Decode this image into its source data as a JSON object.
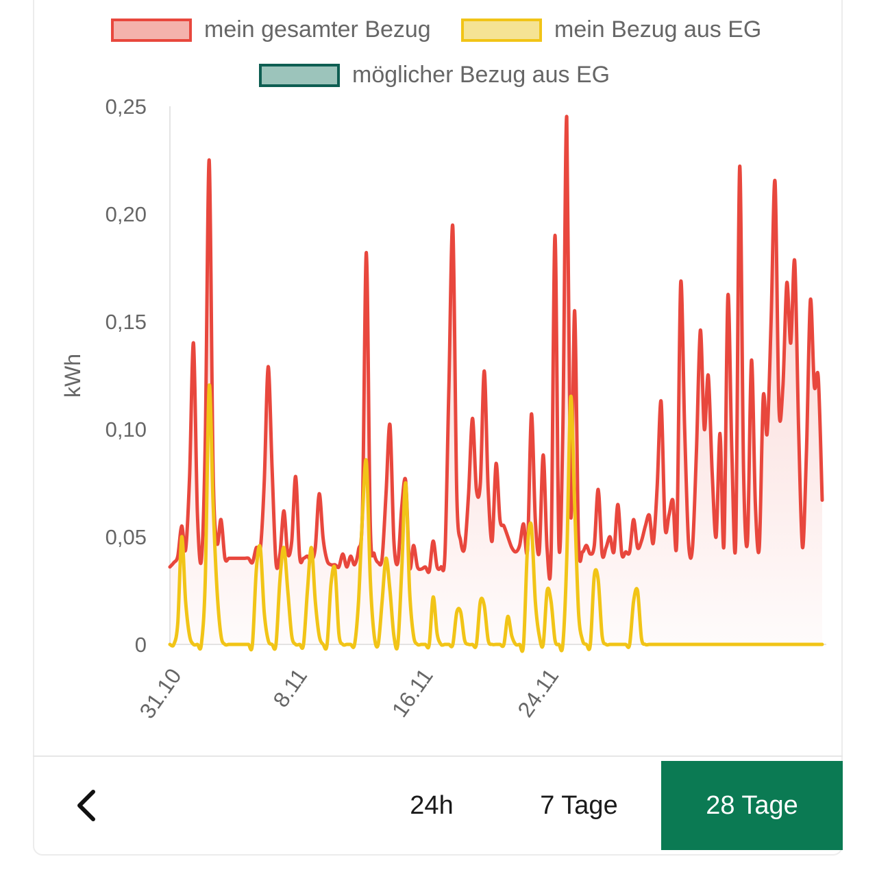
{
  "legend": {
    "total": "mein gesamter Bezug",
    "eg": "mein Bezug aus EG",
    "possible": "möglicher Bezug aus EG"
  },
  "colors": {
    "total_line": "#e8473d",
    "total_fill": "#f4b2ac",
    "eg_line": "#f1c417",
    "eg_fill": "#f5e394",
    "possible_line": "#0e5e52",
    "possible_fill": "#9cc4bb",
    "active_button": "#0b7a53"
  },
  "footer": {
    "back_icon": "chevron-left-icon",
    "btn_24h": "24h",
    "btn_7": "7 Tage",
    "btn_28": "28 Tage",
    "active": "28 Tage"
  },
  "chart_data": {
    "type": "line",
    "ylabel": "kWh",
    "xlabel": "",
    "ylim": [
      0,
      0.25
    ],
    "yticks": [
      "0",
      "0,05",
      "0,10",
      "0,15",
      "0,20",
      "0,25"
    ],
    "x_ticks": [
      "31.10",
      "8.11",
      "16.11",
      "24.11"
    ],
    "x_tick_index": [
      0,
      32,
      64,
      96
    ],
    "series": [
      {
        "name": "mein gesamter Bezug",
        "values": [
          0.036,
          0.038,
          0.041,
          0.055,
          0.044,
          0.078,
          0.14,
          0.061,
          0.039,
          0.095,
          0.225,
          0.08,
          0.047,
          0.058,
          0.04,
          0.04,
          0.04,
          0.04,
          0.04,
          0.04,
          0.04,
          0.038,
          0.045,
          0.044,
          0.075,
          0.129,
          0.082,
          0.038,
          0.042,
          0.062,
          0.042,
          0.048,
          0.078,
          0.041,
          0.04,
          0.041,
          0.039,
          0.045,
          0.07,
          0.049,
          0.039,
          0.037,
          0.037,
          0.036,
          0.042,
          0.036,
          0.041,
          0.037,
          0.044,
          0.062,
          0.182,
          0.055,
          0.042,
          0.038,
          0.04,
          0.07,
          0.102,
          0.048,
          0.038,
          0.064,
          0.076,
          0.036,
          0.046,
          0.036,
          0.035,
          0.036,
          0.034,
          0.048,
          0.036,
          0.036,
          0.042,
          0.12,
          0.194,
          0.07,
          0.048,
          0.045,
          0.07,
          0.105,
          0.072,
          0.075,
          0.127,
          0.072,
          0.048,
          0.084,
          0.058,
          0.055,
          0.05,
          0.045,
          0.043,
          0.046,
          0.056,
          0.044,
          0.107,
          0.058,
          0.043,
          0.088,
          0.044,
          0.042,
          0.19,
          0.046,
          0.1,
          0.245,
          0.06,
          0.155,
          0.048,
          0.043,
          0.046,
          0.042,
          0.046,
          0.072,
          0.042,
          0.045,
          0.05,
          0.043,
          0.065,
          0.042,
          0.043,
          0.043,
          0.058,
          0.045,
          0.048,
          0.055,
          0.06,
          0.047,
          0.073,
          0.113,
          0.055,
          0.06,
          0.067,
          0.048,
          0.168,
          0.1,
          0.047,
          0.045,
          0.09,
          0.146,
          0.1,
          0.125,
          0.08,
          0.05,
          0.098,
          0.046,
          0.162,
          0.09,
          0.048,
          0.222,
          0.08,
          0.048,
          0.132,
          0.065,
          0.045,
          0.115,
          0.098,
          0.15,
          0.215,
          0.11,
          0.12,
          0.168,
          0.14,
          0.178,
          0.1,
          0.045,
          0.09,
          0.16,
          0.12,
          0.124,
          0.067
        ]
      },
      {
        "name": "mein Bezug aus EG",
        "values": [
          0,
          0,
          0.01,
          0.05,
          0.02,
          0.004,
          0,
          0,
          0,
          0.03,
          0.12,
          0.065,
          0.025,
          0.004,
          0,
          0,
          0,
          0,
          0,
          0,
          0,
          0,
          0.035,
          0.045,
          0.015,
          0.002,
          0,
          0,
          0.03,
          0.045,
          0.025,
          0.004,
          0,
          0,
          0,
          0.025,
          0.045,
          0.02,
          0.004,
          0,
          0,
          0.028,
          0.035,
          0.005,
          0,
          0,
          0,
          0,
          0.02,
          0.06,
          0.085,
          0.03,
          0.004,
          0,
          0.02,
          0.04,
          0.025,
          0.004,
          0,
          0.035,
          0.075,
          0.025,
          0.004,
          0,
          0,
          0,
          0,
          0.022,
          0.005,
          0,
          0,
          0,
          0,
          0.015,
          0.015,
          0.002,
          0,
          0,
          0,
          0.02,
          0.018,
          0.002,
          0,
          0,
          0,
          0,
          0.013,
          0.004,
          0,
          0,
          0,
          0.045,
          0.055,
          0.02,
          0.004,
          0,
          0.025,
          0.02,
          0.002,
          0,
          0,
          0.04,
          0.115,
          0.065,
          0.015,
          0.002,
          0,
          0,
          0.032,
          0.03,
          0.004,
          0,
          0,
          0,
          0,
          0,
          0,
          0,
          0.02,
          0.025,
          0.003,
          0,
          0,
          0,
          0,
          0,
          0,
          0,
          0,
          0,
          0,
          0,
          0,
          0,
          0,
          0,
          0,
          0,
          0,
          0,
          0,
          0,
          0,
          0,
          0,
          0,
          0,
          0,
          0,
          0,
          0,
          0,
          0,
          0,
          0,
          0,
          0,
          0,
          0,
          0,
          0,
          0,
          0,
          0,
          0,
          0,
          0
        ]
      },
      {
        "name": "möglicher Bezug aus EG",
        "values": []
      }
    ],
    "grid": false,
    "legend_position": "top"
  }
}
